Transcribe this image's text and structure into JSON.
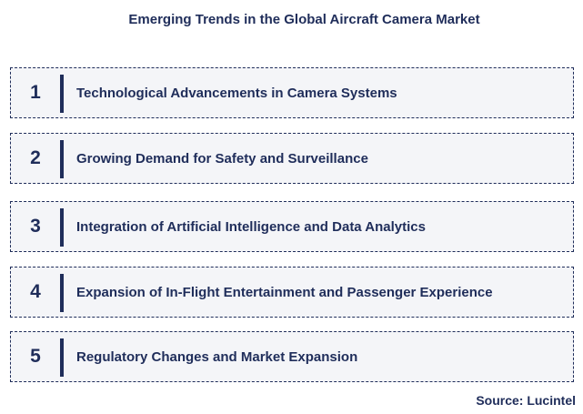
{
  "title": "Emerging Trends in the Global Aircraft Camera Market",
  "trends": [
    {
      "number": "1",
      "label": "Technological Advancements in Camera Systems"
    },
    {
      "number": "2",
      "label": "Growing Demand for Safety and Surveillance"
    },
    {
      "number": "3",
      "label": "Integration of Artificial Intelligence and Data Analytics"
    },
    {
      "number": "4",
      "label": "Expansion of In-Flight Entertainment and Passenger Experience"
    },
    {
      "number": "5",
      "label": "Regulatory Changes and Market Expansion"
    }
  ],
  "source": "Source: Lucintel",
  "colors": {
    "text": "#1f2d5a",
    "box_background": "#f4f5f8",
    "border": "#1f2d5a"
  }
}
